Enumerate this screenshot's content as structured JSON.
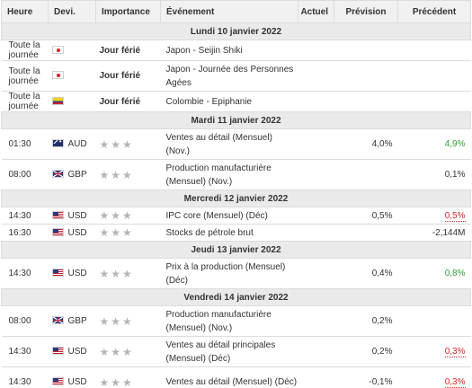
{
  "columns": {
    "time": "Heure",
    "currency": "Devi.",
    "importance": "Importance",
    "event": "Événement",
    "actual": "Actuel",
    "forecast": "Prévision",
    "previous": "Précédent"
  },
  "days": [
    {
      "date": "Lundi 10 janvier 2022",
      "events": [
        {
          "time": "Toute la journée",
          "flag": "jp",
          "currency": "",
          "importance": "Jour férié",
          "holiday": true,
          "event": "Japon - Seijin Shiki",
          "actual": "",
          "forecast": "",
          "previous": "",
          "previous_color": ""
        },
        {
          "time": "Toute la journée",
          "flag": "jp",
          "currency": "",
          "importance": "Jour férié",
          "holiday": true,
          "event": "Japon - Journée des Personnes Agées",
          "actual": "",
          "forecast": "",
          "previous": "",
          "previous_color": ""
        },
        {
          "time": "Toute la journée",
          "flag": "co",
          "currency": "",
          "importance": "Jour férié",
          "holiday": true,
          "event": "Colombie - Epiphanie",
          "actual": "",
          "forecast": "",
          "previous": "",
          "previous_color": ""
        }
      ]
    },
    {
      "date": "Mardi 11 janvier 2022",
      "events": [
        {
          "time": "01:30",
          "flag": "au",
          "currency": "AUD",
          "importance": "★★★",
          "holiday": false,
          "event": "Ventes au détail (Mensuel) (Nov.)",
          "actual": "",
          "forecast": "4,0%",
          "previous": "4,9%",
          "previous_color": "green"
        },
        {
          "time": "08:00",
          "flag": "gb",
          "currency": "GBP",
          "importance": "★★★",
          "holiday": false,
          "event": "Production manufacturière (Mensuel) (Nov.)",
          "actual": "",
          "forecast": "",
          "previous": "0,1%",
          "previous_color": ""
        }
      ]
    },
    {
      "date": "Mercredi 12 janvier 2022",
      "events": [
        {
          "time": "14:30",
          "flag": "us",
          "currency": "USD",
          "importance": "★★★",
          "holiday": false,
          "event": "IPC core (Mensuel) (Déc)",
          "actual": "",
          "forecast": "0,5%",
          "previous": "0,5%",
          "previous_color": "red"
        },
        {
          "time": "16:30",
          "flag": "us",
          "currency": "USD",
          "importance": "★★★",
          "holiday": false,
          "event": "Stocks de pétrole brut",
          "actual": "",
          "forecast": "",
          "previous": "-2,144M",
          "previous_color": ""
        }
      ]
    },
    {
      "date": "Jeudi 13 janvier 2022",
      "events": [
        {
          "time": "14:30",
          "flag": "us",
          "currency": "USD",
          "importance": "★★★",
          "holiday": false,
          "event": "Prix à la production (Mensuel) (Déc)",
          "actual": "",
          "forecast": "0,4%",
          "previous": "0,8%",
          "previous_color": "green"
        }
      ]
    },
    {
      "date": "Vendredi 14 janvier 2022",
      "events": [
        {
          "time": "08:00",
          "flag": "gb",
          "currency": "GBP",
          "importance": "★★★",
          "holiday": false,
          "event": "Production manufacturière (Mensuel) (Nov.)",
          "actual": "",
          "forecast": "0,2%",
          "previous": "",
          "previous_color": ""
        },
        {
          "time": "14:30",
          "flag": "us",
          "currency": "USD",
          "importance": "★★★",
          "holiday": false,
          "event": "Ventes au détail principales (Mensuel) (Déc)",
          "actual": "",
          "forecast": "0,2%",
          "previous": "0,3%",
          "previous_color": "red"
        },
        {
          "time": "14:30",
          "flag": "us",
          "currency": "USD",
          "importance": "★★★",
          "holiday": false,
          "event": "Ventes au détail (Mensuel) (Déc)",
          "actual": "",
          "forecast": "-0,1%",
          "previous": "0,3%",
          "previous_color": "red"
        }
      ]
    }
  ],
  "colors": {
    "positive": "#2e9e34",
    "negative": "#d0282b",
    "star": "#b5b5b5"
  }
}
